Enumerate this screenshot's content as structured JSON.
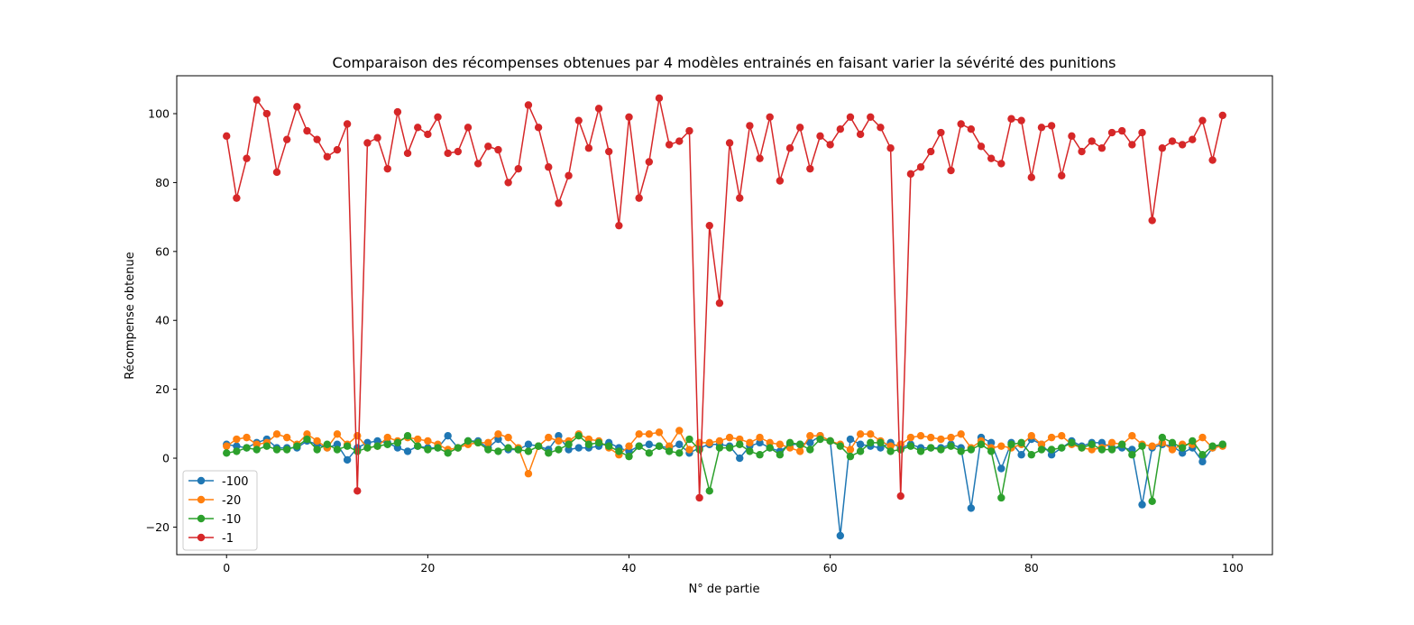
{
  "chart_data": {
    "type": "line",
    "title": "Comparaison des récompenses obtenues par 4 modèles entrainés en faisant varier la sévérité des punitions",
    "xlabel": "N° de partie",
    "ylabel": "Récompense obtenue",
    "xlim": [
      -4.95,
      103.95
    ],
    "ylim": [
      -28,
      111
    ],
    "xticks": [
      0,
      20,
      40,
      60,
      80,
      100
    ],
    "yticks": [
      -20,
      0,
      20,
      40,
      60,
      80,
      100
    ],
    "grid": false,
    "legend_position": "lower-left",
    "markers": true,
    "series": [
      {
        "name": "-100",
        "color": "#1f77b4",
        "values": [
          4,
          3.5,
          3,
          4.5,
          5.5,
          3,
          3,
          3,
          5,
          4,
          3,
          4,
          -0.5,
          3,
          4.5,
          5,
          4.5,
          3,
          2,
          3.5,
          3,
          3,
          6.5,
          3,
          5,
          5,
          3,
          5.5,
          2.5,
          2.5,
          4,
          3.5,
          2.5,
          6.5,
          2.5,
          3,
          3,
          3.5,
          4.5,
          3,
          2,
          3.5,
          4,
          3.5,
          3,
          4,
          1.5,
          3,
          4,
          4,
          3.5,
          0,
          3.5,
          4.5,
          3,
          2,
          4,
          4,
          4.5,
          6.5,
          5,
          -22.5,
          5.5,
          4,
          3.5,
          3,
          4.5,
          3,
          4,
          3,
          3,
          3,
          4,
          3,
          -14.5,
          6,
          4.5,
          -3,
          4.5,
          1,
          5.5,
          4,
          1,
          3,
          5,
          3.5,
          4.5,
          4.5,
          3,
          3,
          2.5,
          -13.5,
          3,
          4,
          3.5,
          1.5,
          3,
          -1,
          3,
          4
        ]
      },
      {
        "name": "-20",
        "color": "#ff7f0e",
        "values": [
          3.5,
          5.5,
          6,
          4,
          4.5,
          7,
          6,
          4,
          7,
          5,
          3,
          7,
          4,
          6.5,
          3,
          3.5,
          6,
          5,
          6,
          5.5,
          5,
          4,
          2.5,
          3,
          4,
          4.5,
          4.5,
          7,
          6,
          3,
          -4.5,
          3.5,
          6,
          5,
          5,
          7,
          5.5,
          5,
          3,
          1,
          3.5,
          7,
          7,
          7.5,
          3.5,
          8,
          2.5,
          4.5,
          4.5,
          5,
          6,
          5.5,
          4.5,
          6,
          4.5,
          4,
          3,
          2,
          6.5,
          6.5,
          5,
          4,
          2.5,
          7,
          7,
          5,
          3.5,
          4,
          6,
          6.5,
          6,
          5.5,
          6,
          7,
          3,
          5,
          3,
          3.5,
          3,
          4,
          6.5,
          4,
          6,
          6.5,
          4,
          3,
          2.5,
          3,
          4.5,
          4,
          6.5,
          4,
          3.5,
          4.5,
          2.5,
          4,
          4,
          6,
          3,
          3.5
        ]
      },
      {
        "name": "-10",
        "color": "#2ca02c",
        "values": [
          1.5,
          2,
          3,
          2.5,
          3.5,
          2.5,
          2.5,
          3.5,
          5.5,
          2.5,
          4,
          2.5,
          3.5,
          2,
          3,
          3.5,
          4,
          4.5,
          6.5,
          3.5,
          2.5,
          3,
          1.5,
          3,
          5,
          4.5,
          2.5,
          2,
          3,
          2.5,
          2,
          3.5,
          1.5,
          2.5,
          4,
          6.5,
          4,
          4.5,
          3.5,
          2,
          0.5,
          3.5,
          1.5,
          3.5,
          2,
          1.5,
          5.5,
          2.5,
          -9.5,
          3,
          3,
          4,
          2,
          1,
          3,
          1,
          4.5,
          4,
          2.5,
          5.5,
          5,
          3.5,
          0.5,
          2,
          4.5,
          4.5,
          2,
          2.5,
          3.5,
          2,
          3,
          2.5,
          3.5,
          2,
          2.5,
          4,
          2,
          -11.5,
          4,
          4.5,
          1,
          2.5,
          2.5,
          3,
          4.5,
          3,
          4,
          2.5,
          2.5,
          4,
          1,
          3.5,
          -12.5,
          6,
          4.5,
          3,
          5,
          1,
          3.5,
          4
        ]
      },
      {
        "name": "-1",
        "color": "#d62728",
        "values": [
          93.5,
          75.5,
          87,
          104,
          100,
          83,
          92.5,
          102,
          95,
          92.5,
          87.5,
          89.5,
          97,
          -9.5,
          91.5,
          93,
          84,
          100.5,
          88.5,
          96,
          94,
          99,
          88.5,
          89,
          96,
          85.5,
          90.5,
          89.5,
          80,
          84,
          102.5,
          96,
          84.5,
          74,
          82,
          98,
          90,
          101.5,
          89,
          67.5,
          99,
          75.5,
          86,
          104.5,
          91,
          92,
          95,
          -11.5,
          67.5,
          45,
          91.5,
          75.5,
          96.5,
          87,
          99,
          80.5,
          90,
          96,
          84,
          93.5,
          91,
          95.5,
          99,
          94,
          99,
          96,
          90,
          -11,
          82.5,
          84.5,
          89,
          94.5,
          83.5,
          97,
          95.5,
          90.5,
          87,
          85.5,
          98.5,
          98,
          81.5,
          96,
          96.5,
          82,
          93.5,
          89,
          92,
          90,
          94.5,
          95,
          91,
          94.5,
          69,
          90,
          92,
          91,
          92.5,
          98,
          86.5,
          99.5
        ]
      }
    ]
  }
}
